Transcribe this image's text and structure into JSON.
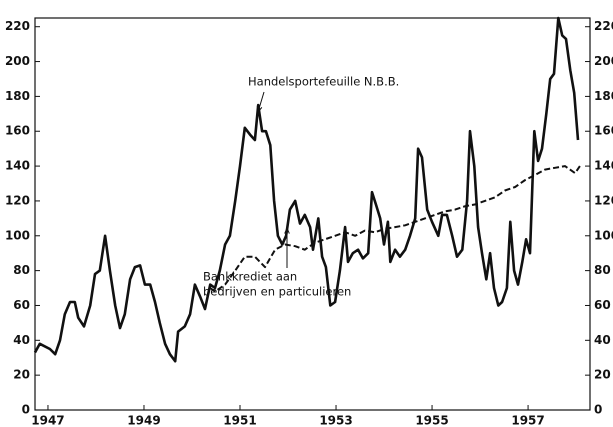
{
  "chart_data": {
    "type": "line",
    "series": [
      {
        "color": "#111111",
        "dash": false,
        "x": [
          1946.73,
          1946.83,
          1947.04,
          1947.15,
          1947.25,
          1947.35,
          1947.46,
          1947.56,
          1947.63,
          1947.75,
          1947.88,
          1947.98,
          1948.08,
          1948.19,
          1948.29,
          1948.4,
          1948.5,
          1948.6,
          1948.71,
          1948.81,
          1948.92,
          1949.02,
          1949.13,
          1949.23,
          1949.33,
          1949.44,
          1949.54,
          1949.65,
          1949.71,
          1949.85,
          1949.96,
          1950.06,
          1950.17,
          1950.27,
          1950.38,
          1950.48,
          1950.58,
          1950.69,
          1950.79,
          1950.9,
          1951.0,
          1951.1,
          1951.21,
          1951.31,
          1951.38,
          1951.46,
          1951.54,
          1951.63,
          1951.71,
          1951.79,
          1951.88,
          1951.96,
          1952.04,
          1952.15,
          1952.25,
          1952.35,
          1952.46,
          1952.52,
          1952.63,
          1952.71,
          1952.79,
          1952.88,
          1952.98,
          1953.08,
          1953.19,
          1953.25,
          1953.35,
          1953.46,
          1953.56,
          1953.67,
          1953.75,
          1953.83,
          1953.92,
          1954.0,
          1954.08,
          1954.13,
          1954.23,
          1954.33,
          1954.44,
          1954.54,
          1954.65,
          1954.71,
          1954.79,
          1954.9,
          1955.0,
          1955.13,
          1955.21,
          1955.31,
          1955.42,
          1955.52,
          1955.63,
          1955.73,
          1955.79,
          1955.88,
          1955.96,
          1956.04,
          1956.13,
          1956.21,
          1956.29,
          1956.38,
          1956.46,
          1956.56,
          1956.63,
          1956.71,
          1956.79,
          1956.88,
          1956.96,
          1957.04,
          1957.13,
          1957.21,
          1957.29,
          1957.38,
          1957.46,
          1957.54,
          1957.63,
          1957.71,
          1957.79,
          1957.88,
          1957.96,
          1958.04
        ],
        "values": [
          33,
          38,
          35,
          32,
          40,
          55,
          62,
          62,
          53,
          48,
          60,
          78,
          80,
          100,
          80,
          60,
          47,
          55,
          75,
          82,
          83,
          72,
          72,
          62,
          50,
          38,
          32,
          28,
          45,
          48,
          55,
          72,
          65,
          58,
          72,
          70,
          80,
          95,
          100,
          120,
          140,
          162,
          158,
          155,
          175,
          160,
          160,
          152,
          120,
          100,
          95,
          100,
          115,
          120,
          107,
          112,
          105,
          92,
          110,
          88,
          82,
          60,
          62,
          80,
          105,
          85,
          90,
          92,
          87,
          90,
          125,
          118,
          110,
          95,
          108,
          85,
          92,
          88,
          92,
          100,
          110,
          150,
          145,
          115,
          108,
          100,
          112,
          112,
          100,
          88,
          92,
          120,
          160,
          140,
          105,
          90,
          75,
          90,
          70,
          60,
          62,
          70,
          108,
          80,
          72,
          85,
          98,
          90,
          160,
          143,
          150,
          170,
          190,
          193,
          225,
          215,
          213,
          195,
          182,
          155
        ]
      },
      {
        "color": "#111111",
        "dash": true,
        "x": [
          1950.38,
          1950.48,
          1950.69,
          1950.9,
          1951.1,
          1951.31,
          1951.52,
          1951.73,
          1951.94,
          1952.15,
          1952.35,
          1952.56,
          1952.77,
          1952.98,
          1953.19,
          1953.4,
          1953.6,
          1953.81,
          1954.02,
          1954.23,
          1954.44,
          1954.65,
          1954.85,
          1955.06,
          1955.27,
          1955.48,
          1955.69,
          1955.9,
          1956.1,
          1956.31,
          1956.52,
          1956.73,
          1956.94,
          1957.15,
          1957.35,
          1957.56,
          1957.77,
          1957.98,
          1958.08
        ],
        "values": [
          70,
          68,
          72,
          80,
          88,
          88,
          82,
          92,
          95,
          94,
          92,
          96,
          98,
          100,
          102,
          100,
          103,
          102,
          104,
          105,
          106,
          108,
          110,
          112,
          114,
          115,
          117,
          118,
          120,
          122,
          126,
          128,
          132,
          135,
          138,
          139,
          140,
          136,
          140
        ]
      }
    ],
    "annotations": [
      {
        "lines": [
          "Handelsportefeuille N.B.B."
        ]
      },
      {
        "lines": [
          "Bankkrediet aan",
          "bedrijven en particulieren"
        ]
      }
    ],
    "xlim": [
      1946.73,
      1958.29
    ],
    "xticks": [
      1947,
      1949,
      1951,
      1953,
      1955,
      1957
    ],
    "ylim": [
      0,
      225
    ],
    "yticks": [
      0,
      20,
      40,
      60,
      80,
      100,
      120,
      140,
      160,
      180,
      200,
      220
    ],
    "y2lim": [
      0,
      225
    ],
    "y2ticks": [
      0,
      20,
      40,
      60,
      80,
      100,
      120,
      140,
      160,
      180,
      200,
      220
    ],
    "grid": false
  }
}
